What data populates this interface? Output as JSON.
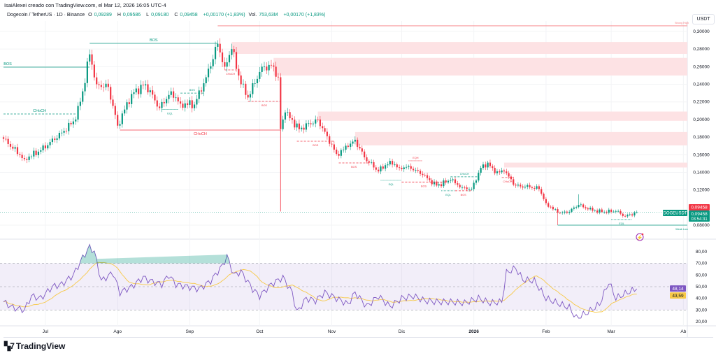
{
  "header": {
    "credit": "IsaiAlexei creado con TradingView.com, el Mar 12, 2026 16:05 UTC-4",
    "symbol": "Dogecoin / TetherUS · 1D · Binance",
    "o_label": "O",
    "o": "0,09289",
    "h_label": "H",
    "h": "0,09586",
    "l_label": "L",
    "l": "0,09180",
    "c_label": "C",
    "c": "0,09458",
    "change": "+0,00170 (+1,83%)",
    "vol_label": "Vol.",
    "vol": "753,63M",
    "vol_change": "+0,00170 (+1,83%)",
    "currency": "USDT"
  },
  "colors": {
    "up": "#089981",
    "down": "#f23645",
    "rsi": "#7e57c2",
    "rsi_ma": "#f7c948",
    "zone": "#fde2e4"
  },
  "price_badges": {
    "last_red": "0,09458",
    "symbol_tag": "DOGEUSDT",
    "last_green": "0,09458",
    "countdown": "03:54:31"
  },
  "rsi_badges": {
    "rsi": "48,14",
    "ma": "43,59"
  },
  "brand": {
    "logo_mark": "17",
    "name": "TradingView"
  },
  "chart_data": [
    {
      "type": "candlestick",
      "title": "Dogecoin / TetherUS · 1D · Binance",
      "ylabel": "USDT",
      "ylim": [
        0.075,
        0.31
      ],
      "y_ticks": [
        {
          "value": 0.3,
          "label": "0,30000"
        },
        {
          "value": 0.28,
          "label": "0,28000"
        },
        {
          "value": 0.26,
          "label": "0,26000"
        },
        {
          "value": 0.24,
          "label": "0,24000"
        },
        {
          "value": 0.22,
          "label": "0,22000"
        },
        {
          "value": 0.2,
          "label": "0,20000"
        },
        {
          "value": 0.18,
          "label": "0,18000"
        },
        {
          "value": 0.16,
          "label": "0,16000"
        },
        {
          "value": 0.14,
          "label": "0,14000"
        },
        {
          "value": 0.12,
          "label": "0,12000"
        },
        {
          "value": 0.08,
          "label": "0,08000"
        }
      ],
      "x_ticks": [
        {
          "date": "2025-07-01",
          "label": "Jul"
        },
        {
          "date": "2025-08-01",
          "label": "Ago"
        },
        {
          "date": "2025-09-01",
          "label": "Sep"
        },
        {
          "date": "2025-10-01",
          "label": "Oct"
        },
        {
          "date": "2025-11-01",
          "label": "Nov"
        },
        {
          "date": "2025-12-01",
          "label": "Dic"
        },
        {
          "date": "2026-01-01",
          "label": "2026"
        },
        {
          "date": "2026-02-01",
          "label": "Feb"
        },
        {
          "date": "2026-03-01",
          "label": "Mar"
        },
        {
          "date": "2026-04-01",
          "label": "Ab"
        }
      ],
      "close_keypoints": [
        [
          "2025-06-13",
          0.178
        ],
        [
          "2025-06-22",
          0.155
        ],
        [
          "2025-06-29",
          0.165
        ],
        [
          "2025-07-08",
          0.185
        ],
        [
          "2025-07-14",
          0.2
        ],
        [
          "2025-07-17",
          0.232
        ],
        [
          "2025-07-20",
          0.274
        ],
        [
          "2025-07-23",
          0.24
        ],
        [
          "2025-07-28",
          0.237
        ],
        [
          "2025-08-01",
          0.193
        ],
        [
          "2025-08-07",
          0.229
        ],
        [
          "2025-08-13",
          0.24
        ],
        [
          "2025-08-19",
          0.213
        ],
        [
          "2025-08-24",
          0.232
        ],
        [
          "2025-08-28",
          0.218
        ],
        [
          "2025-09-03",
          0.217
        ],
        [
          "2025-09-08",
          0.248
        ],
        [
          "2025-09-13",
          0.286
        ],
        [
          "2025-09-16",
          0.26
        ],
        [
          "2025-09-19",
          0.28
        ],
        [
          "2025-09-23",
          0.24
        ],
        [
          "2025-09-26",
          0.225
        ],
        [
          "2025-10-02",
          0.26
        ],
        [
          "2025-10-07",
          0.26
        ],
        [
          "2025-10-09",
          0.248
        ],
        [
          "2025-10-10",
          0.189
        ],
        [
          "2025-10-12",
          0.208
        ],
        [
          "2025-10-18",
          0.189
        ],
        [
          "2025-10-26",
          0.2
        ],
        [
          "2025-10-30",
          0.181
        ],
        [
          "2025-11-03",
          0.161
        ],
        [
          "2025-11-08",
          0.169
        ],
        [
          "2025-11-11",
          0.177
        ],
        [
          "2025-11-15",
          0.157
        ],
        [
          "2025-11-21",
          0.141
        ],
        [
          "2025-11-26",
          0.153
        ],
        [
          "2025-11-30",
          0.145
        ],
        [
          "2025-12-04",
          0.147
        ],
        [
          "2025-12-10",
          0.137
        ],
        [
          "2025-12-16",
          0.125
        ],
        [
          "2025-12-22",
          0.131
        ],
        [
          "2025-12-27",
          0.123
        ],
        [
          "2025-12-31",
          0.121
        ],
        [
          "2026-01-04",
          0.145
        ],
        [
          "2026-01-07",
          0.151
        ],
        [
          "2026-01-10",
          0.139
        ],
        [
          "2026-01-14",
          0.141
        ],
        [
          "2026-01-19",
          0.125
        ],
        [
          "2026-01-25",
          0.123
        ],
        [
          "2026-01-29",
          0.121
        ],
        [
          "2026-02-01",
          0.105
        ],
        [
          "2026-02-06",
          0.094
        ],
        [
          "2026-02-10",
          0.094
        ],
        [
          "2026-02-15",
          0.103
        ],
        [
          "2026-02-19",
          0.098
        ],
        [
          "2026-02-25",
          0.095
        ],
        [
          "2026-03-03",
          0.096
        ],
        [
          "2026-03-07",
          0.09
        ],
        [
          "2026-03-12",
          0.09458
        ]
      ],
      "extreme_wicks": [
        {
          "date": "2025-10-10",
          "low": 0.096
        },
        {
          "date": "2026-02-06",
          "low": 0.08
        },
        {
          "date": "2026-02-15",
          "high": 0.115
        }
      ],
      "last_price": 0.09458,
      "zones": [
        {
          "from": "2025-09-19",
          "top": 0.288,
          "bottom": 0.2746
        },
        {
          "from": "2025-10-07",
          "top": 0.27,
          "bottom": 0.25
        },
        {
          "from": "2025-10-26",
          "top": 0.209,
          "bottom": 0.1985
        },
        {
          "from": "2025-11-11",
          "top": 0.1857,
          "bottom": 0.1706
        },
        {
          "from": "2026-01-14",
          "top": 0.151,
          "bottom": 0.1455
        }
      ],
      "structure_lines": [
        {
          "label": "BOS",
          "price": 0.2595,
          "from": "2025-06-13",
          "to": "2025-07-20",
          "color": "#089981",
          "style": "solid",
          "side": "above",
          "label_at": "start"
        },
        {
          "label": "BOS",
          "price": 0.2865,
          "from": "2025-07-20",
          "to": "2025-09-13",
          "color": "#089981",
          "style": "solid",
          "side": "above"
        },
        {
          "label": "Strong High",
          "price": 0.3064,
          "from": "2025-09-13",
          "to": "end",
          "color": "#f77c80",
          "style": "solid",
          "side": "above",
          "label_at": "end"
        },
        {
          "label": "CHoCH",
          "price": 0.2063,
          "from": "2025-06-13",
          "to": "2025-07-14",
          "color": "#089981",
          "style": "dashed",
          "side": "above"
        },
        {
          "label": "CHoCH",
          "price": 0.188,
          "from": "2025-08-02",
          "to": "2025-10-10",
          "color": "#f23645",
          "style": "solid",
          "side": "below"
        },
        {
          "label": "BOS",
          "price": 0.23,
          "from": "2025-08-28",
          "to": "2025-09-07",
          "color": "#089981",
          "style": "dashed",
          "side": "above"
        },
        {
          "label": "EQL",
          "price": 0.2115,
          "from": "2025-08-20",
          "to": "2025-08-27",
          "color": "#089981",
          "style": "dotted",
          "side": "below"
        },
        {
          "label": "CHoCH",
          "price": 0.2563,
          "from": "2025-09-16",
          "to": "2025-09-21",
          "color": "#f23645",
          "style": "dashed",
          "side": "below"
        },
        {
          "label": "BOS",
          "price": 0.2206,
          "from": "2025-09-26",
          "to": "2025-10-10",
          "color": "#f23645",
          "style": "dashed",
          "side": "below"
        },
        {
          "label": "BOS",
          "price": 0.1753,
          "from": "2025-10-17",
          "to": "2025-11-02",
          "color": "#f23645",
          "style": "dashed",
          "side": "below"
        },
        {
          "label": "BOS",
          "price": 0.1507,
          "from": "2025-11-04",
          "to": "2025-11-17",
          "color": "#f23645",
          "style": "dashed",
          "side": "below"
        },
        {
          "label": "EQL",
          "price": 0.1309,
          "from": "2025-11-22",
          "to": "2025-12-01",
          "color": "#089981",
          "style": "dotted",
          "side": "below"
        },
        {
          "label": "EQH",
          "price": 0.1531,
          "from": "2025-12-04",
          "to": "2025-12-10",
          "color": "#f23645",
          "style": "dotted",
          "side": "above"
        },
        {
          "label": "BOS",
          "price": 0.129,
          "from": "2025-12-01",
          "to": "2025-12-20",
          "color": "#f23645",
          "style": "dashed",
          "side": "below"
        },
        {
          "label": "CHoCH",
          "price": 0.1349,
          "from": "2025-12-22",
          "to": "2026-01-03",
          "color": "#089981",
          "style": "dashed",
          "side": "above"
        },
        {
          "label": "EQL",
          "price": 0.119,
          "from": "2025-12-18",
          "to": "2025-12-24",
          "color": "#089981",
          "style": "dotted",
          "side": "below"
        },
        {
          "label": "BOS",
          "price": 0.119,
          "from": "2025-12-24",
          "to": "2025-12-31",
          "color": "#f23645",
          "style": "dashed",
          "side": "below"
        },
        {
          "label": "CHoCH",
          "price": 0.1341,
          "from": "2026-01-13",
          "to": "2026-01-18",
          "color": "#f23645",
          "style": "dashed",
          "side": "below"
        },
        {
          "label": "EQL",
          "price": 0.0864,
          "from": "2026-03-01",
          "to": "2026-03-10",
          "color": "#089981",
          "style": "dotted",
          "side": "below"
        },
        {
          "label": "Weak Low",
          "price": 0.08,
          "from": "2026-02-06",
          "to": "end",
          "color": "#089981",
          "style": "solid",
          "side": "below",
          "label_at": "end"
        }
      ]
    },
    {
      "type": "line",
      "title": "RSI",
      "ylim": [
        15,
        85
      ],
      "y_ticks": [
        {
          "value": 80,
          "label": "80,00"
        },
        {
          "value": 70,
          "label": "70,00"
        },
        {
          "value": 60,
          "label": "60,00"
        },
        {
          "value": 50,
          "label": "50,00"
        },
        {
          "value": 40,
          "label": "40,00"
        },
        {
          "value": 30,
          "label": "30,00"
        },
        {
          "value": 20,
          "label": "20,00"
        }
      ],
      "bands": {
        "upper": 70,
        "middle": 50,
        "lower": 30
      },
      "rsi_keypoints": [
        [
          "2025-06-13",
          37
        ],
        [
          "2025-06-17",
          32
        ],
        [
          "2025-06-22",
          30
        ],
        [
          "2025-06-25",
          42
        ],
        [
          "2025-06-29",
          40
        ],
        [
          "2025-07-04",
          50
        ],
        [
          "2025-07-08",
          52
        ],
        [
          "2025-07-13",
          60
        ],
        [
          "2025-07-17",
          75
        ],
        [
          "2025-07-20",
          84
        ],
        [
          "2025-07-22",
          80
        ],
        [
          "2025-07-25",
          55
        ],
        [
          "2025-07-30",
          62
        ],
        [
          "2025-08-02",
          45
        ],
        [
          "2025-08-07",
          50
        ],
        [
          "2025-08-12",
          58
        ],
        [
          "2025-08-15",
          55
        ],
        [
          "2025-08-20",
          52
        ],
        [
          "2025-08-23",
          60
        ],
        [
          "2025-08-26",
          52
        ],
        [
          "2025-08-31",
          50
        ],
        [
          "2025-09-05",
          48
        ],
        [
          "2025-09-10",
          55
        ],
        [
          "2025-09-15",
          68
        ],
        [
          "2025-09-17",
          76
        ],
        [
          "2025-09-20",
          60
        ],
        [
          "2025-09-23",
          63
        ],
        [
          "2025-09-28",
          48
        ],
        [
          "2025-10-01",
          42
        ],
        [
          "2025-10-06",
          52
        ],
        [
          "2025-10-11",
          58
        ],
        [
          "2025-10-15",
          45
        ],
        [
          "2025-10-17",
          28
        ],
        [
          "2025-10-21",
          40
        ],
        [
          "2025-10-25",
          38
        ],
        [
          "2025-10-29",
          45
        ],
        [
          "2025-11-03",
          40
        ],
        [
          "2025-11-08",
          35
        ],
        [
          "2025-11-11",
          45
        ],
        [
          "2025-11-16",
          33
        ],
        [
          "2025-11-21",
          42
        ],
        [
          "2025-11-26",
          33
        ],
        [
          "2025-12-01",
          40
        ],
        [
          "2025-12-06",
          42
        ],
        [
          "2025-12-11",
          38
        ],
        [
          "2025-12-16",
          37
        ],
        [
          "2025-12-22",
          37
        ],
        [
          "2025-12-28",
          36
        ],
        [
          "2026-01-03",
          40
        ],
        [
          "2026-01-08",
          36
        ],
        [
          "2026-01-13",
          37
        ],
        [
          "2026-01-15",
          62
        ],
        [
          "2026-01-19",
          66
        ],
        [
          "2026-01-22",
          56
        ],
        [
          "2026-01-27",
          55
        ],
        [
          "2026-02-01",
          40
        ],
        [
          "2026-02-07",
          35
        ],
        [
          "2026-02-11",
          32
        ],
        [
          "2026-02-14",
          23
        ],
        [
          "2026-02-19",
          28
        ],
        [
          "2026-02-24",
          35
        ],
        [
          "2026-02-28",
          54
        ],
        [
          "2026-03-03",
          40
        ],
        [
          "2026-03-08",
          45
        ],
        [
          "2026-03-12",
          48.14
        ]
      ],
      "rsi_last": 48.14,
      "ma_last": 43.59
    }
  ]
}
